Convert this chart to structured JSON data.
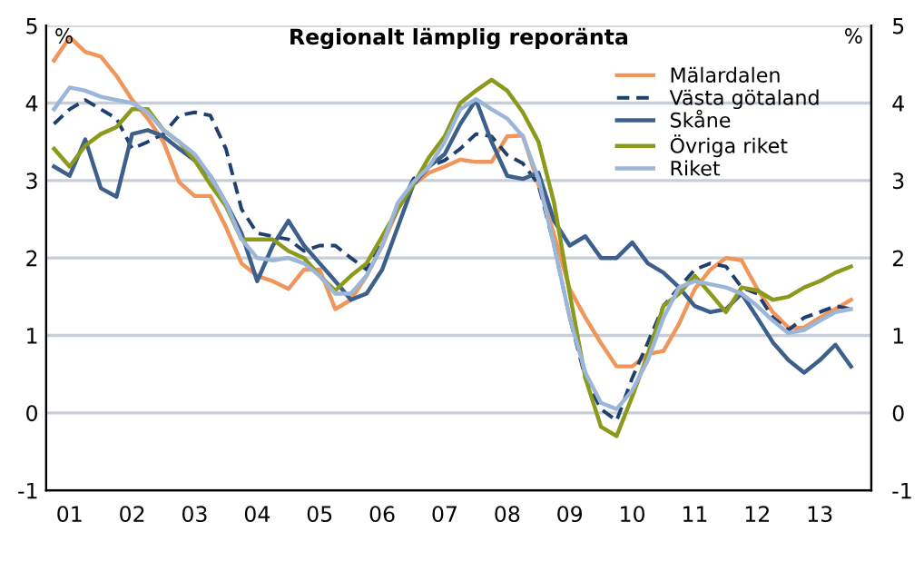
{
  "chart_data": {
    "type": "line",
    "title": "Regionalt lämplig reporänta",
    "ylabel": "%",
    "y2label": "%",
    "categories": [
      null,
      "01",
      null,
      null,
      null,
      "02",
      null,
      null,
      null,
      "03",
      null,
      null,
      null,
      "04",
      null,
      null,
      null,
      "05",
      null,
      null,
      null,
      "06",
      null,
      null,
      null,
      "07",
      null,
      null,
      null,
      "08",
      null,
      null,
      null,
      "09",
      null,
      null,
      null,
      "10",
      null,
      null,
      null,
      "11",
      null,
      null,
      null,
      "12",
      null,
      null,
      null,
      "13",
      null,
      null
    ],
    "series": [
      {
        "name": "Mälardalen",
        "color": "#f0965a",
        "line_style": "solid",
        "values": [
          4.55,
          4.85,
          4.66,
          4.6,
          4.35,
          4.04,
          3.8,
          3.5,
          2.98,
          2.8,
          2.8,
          2.4,
          1.93,
          1.77,
          1.7,
          1.6,
          1.85,
          1.85,
          1.34,
          1.46,
          1.77,
          2.16,
          2.63,
          2.95,
          3.1,
          3.18,
          3.27,
          3.24,
          3.24,
          3.57,
          3.58,
          2.95,
          2.3,
          1.6,
          1.23,
          0.9,
          0.6,
          0.6,
          0.76,
          0.8,
          1.15,
          1.6,
          1.85,
          2.0,
          1.97,
          1.6,
          1.3,
          1.1,
          1.1,
          1.23,
          1.34,
          1.46
        ]
      },
      {
        "name": "Västa götaland",
        "color": "#1f3f6e",
        "line_style": "dashed",
        "values": [
          3.73,
          3.92,
          4.04,
          3.92,
          3.8,
          3.41,
          3.5,
          3.6,
          3.84,
          3.88,
          3.84,
          3.41,
          2.63,
          2.32,
          2.28,
          2.24,
          2.09,
          2.16,
          2.16,
          2.0,
          1.85,
          2.24,
          2.63,
          3.02,
          3.18,
          3.26,
          3.41,
          3.6,
          3.57,
          3.33,
          3.22,
          2.95,
          2.16,
          1.23,
          0.45,
          0.05,
          -0.1,
          0.45,
          0.91,
          1.38,
          1.62,
          1.85,
          1.93,
          1.89,
          1.62,
          1.54,
          1.23,
          1.07,
          1.23,
          1.3,
          1.38,
          1.34
        ]
      },
      {
        "name": "Skåne",
        "color": "#3c5f8c",
        "line_style": "solid",
        "values": [
          3.18,
          3.06,
          3.53,
          2.9,
          2.79,
          3.6,
          3.65,
          3.57,
          3.41,
          3.26,
          3.06,
          2.71,
          2.32,
          1.7,
          2.16,
          2.48,
          2.16,
          1.93,
          1.7,
          1.46,
          1.54,
          1.85,
          2.4,
          2.95,
          3.18,
          3.34,
          3.73,
          4.04,
          3.5,
          3.06,
          3.02,
          3.1,
          2.48,
          2.16,
          2.28,
          2.0,
          2.0,
          2.2,
          1.93,
          1.81,
          1.62,
          1.38,
          1.3,
          1.34,
          1.54,
          1.23,
          0.91,
          0.68,
          0.52,
          0.68,
          0.88,
          0.6
        ]
      },
      {
        "name": "Övriga riket",
        "color": "#8c9a1c",
        "line_style": "solid",
        "values": [
          3.41,
          3.18,
          3.45,
          3.6,
          3.69,
          3.92,
          3.92,
          3.65,
          3.5,
          3.26,
          2.95,
          2.67,
          2.24,
          2.24,
          2.24,
          2.09,
          2.0,
          1.77,
          1.58,
          1.77,
          1.93,
          2.28,
          2.63,
          2.95,
          3.3,
          3.57,
          4.0,
          4.16,
          4.3,
          4.16,
          3.88,
          3.5,
          2.71,
          1.54,
          0.45,
          -0.18,
          -0.3,
          0.21,
          0.76,
          1.38,
          1.54,
          1.77,
          1.54,
          1.3,
          1.62,
          1.58,
          1.46,
          1.5,
          1.62,
          1.7,
          1.81,
          1.89
        ]
      },
      {
        "name": "Riket",
        "color": "#9bb6d8",
        "line_style": "solid",
        "values": [
          3.92,
          4.2,
          4.16,
          4.08,
          4.04,
          4.0,
          3.88,
          3.65,
          3.5,
          3.34,
          3.06,
          2.71,
          2.24,
          2.0,
          1.97,
          2.0,
          1.93,
          1.77,
          1.54,
          1.54,
          1.77,
          2.16,
          2.71,
          2.98,
          3.18,
          3.5,
          3.92,
          4.05,
          3.92,
          3.8,
          3.57,
          3.02,
          2.16,
          1.23,
          0.52,
          0.13,
          0.05,
          0.29,
          0.68,
          1.23,
          1.62,
          1.7,
          1.66,
          1.62,
          1.54,
          1.38,
          1.19,
          1.03,
          1.07,
          1.19,
          1.3,
          1.34
        ]
      }
    ],
    "ylim": [
      -1,
      5
    ],
    "yticks": [
      -1,
      0,
      1,
      2,
      3,
      4,
      5
    ],
    "y2lim": [
      -1,
      5
    ],
    "y2ticks": [
      -1,
      0,
      1,
      2,
      3,
      4,
      5
    ],
    "grid": "y",
    "legend": "top right"
  }
}
